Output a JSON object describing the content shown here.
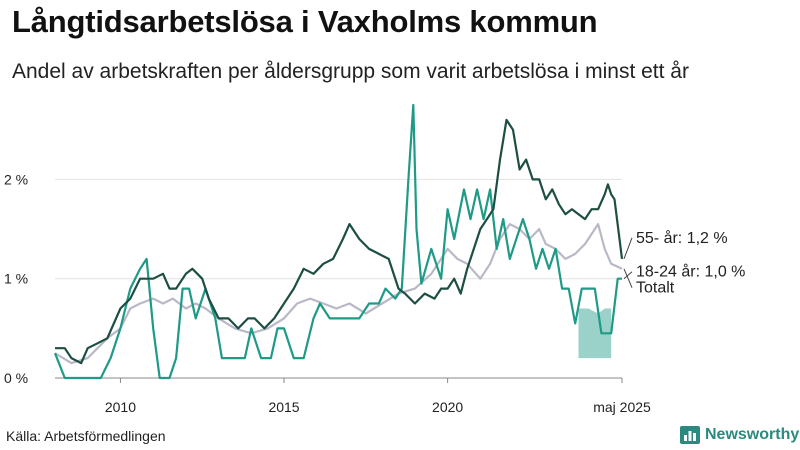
{
  "title": "Långtidsarbetslösa i Vaxholms kommun",
  "subtitle": "Andel av arbetskraften per åldersgrupp som varit arbetslösa i minst ett år",
  "source": "Källa: Arbetsförmedlingen",
  "brand": {
    "name": "Newsworthy",
    "icon": "bar-chart-logo-icon",
    "color": "#2a8a7f"
  },
  "chart_data": {
    "type": "line",
    "title": "",
    "xlabel": "",
    "ylabel": "",
    "x_range": [
      2008.0,
      2025.33
    ],
    "ylim": [
      0,
      2.8
    ],
    "x_ticks": [
      {
        "value": 2010,
        "label": "2010"
      },
      {
        "value": 2015,
        "label": "2015"
      },
      {
        "value": 2020,
        "label": "2020"
      },
      {
        "value": 2025.33,
        "label": "maj 2025"
      }
    ],
    "y_ticks": [
      {
        "value": 0,
        "label": "0 %"
      },
      {
        "value": 1,
        "label": "1 %"
      },
      {
        "value": 2,
        "label": "2 %"
      }
    ],
    "grid": "horizontal",
    "series": [
      {
        "name": "Totalt",
        "end_label": "Totalt",
        "color": "#b9b8c6",
        "points": [
          [
            2008.0,
            0.25
          ],
          [
            2008.5,
            0.15
          ],
          [
            2009.0,
            0.2
          ],
          [
            2009.3,
            0.3
          ],
          [
            2009.6,
            0.4
          ],
          [
            2010.0,
            0.5
          ],
          [
            2010.3,
            0.7
          ],
          [
            2010.6,
            0.75
          ],
          [
            2011.0,
            0.8
          ],
          [
            2011.3,
            0.75
          ],
          [
            2011.6,
            0.8
          ],
          [
            2012.0,
            0.7
          ],
          [
            2012.3,
            0.75
          ],
          [
            2012.6,
            0.7
          ],
          [
            2013.0,
            0.6
          ],
          [
            2013.5,
            0.5
          ],
          [
            2014.0,
            0.45
          ],
          [
            2014.5,
            0.5
          ],
          [
            2015.0,
            0.6
          ],
          [
            2015.4,
            0.75
          ],
          [
            2015.8,
            0.8
          ],
          [
            2016.2,
            0.75
          ],
          [
            2016.6,
            0.7
          ],
          [
            2017.0,
            0.75
          ],
          [
            2017.5,
            0.65
          ],
          [
            2018.0,
            0.75
          ],
          [
            2018.5,
            0.85
          ],
          [
            2019.0,
            0.9
          ],
          [
            2019.5,
            1.05
          ],
          [
            2019.8,
            1.2
          ],
          [
            2020.0,
            1.3
          ],
          [
            2020.3,
            1.2
          ],
          [
            2020.6,
            1.15
          ],
          [
            2021.0,
            1.0
          ],
          [
            2021.3,
            1.15
          ],
          [
            2021.6,
            1.4
          ],
          [
            2021.9,
            1.55
          ],
          [
            2022.2,
            1.5
          ],
          [
            2022.5,
            1.4
          ],
          [
            2022.8,
            1.5
          ],
          [
            2023.0,
            1.35
          ],
          [
            2023.3,
            1.3
          ],
          [
            2023.6,
            1.2
          ],
          [
            2023.9,
            1.25
          ],
          [
            2024.2,
            1.35
          ],
          [
            2024.4,
            1.45
          ],
          [
            2024.6,
            1.55
          ],
          [
            2024.8,
            1.3
          ],
          [
            2025.0,
            1.15
          ],
          [
            2025.33,
            1.1
          ]
        ]
      },
      {
        "name": "18-24 år",
        "end_label": "18-24 år: 1,0 %",
        "color": "#1f9a86",
        "points": [
          [
            2008.0,
            0.25
          ],
          [
            2008.3,
            0.0
          ],
          [
            2008.7,
            0.0
          ],
          [
            2009.0,
            0.0
          ],
          [
            2009.4,
            0.0
          ],
          [
            2009.7,
            0.2
          ],
          [
            2010.0,
            0.5
          ],
          [
            2010.3,
            0.9
          ],
          [
            2010.6,
            1.1
          ],
          [
            2010.8,
            1.2
          ],
          [
            2011.0,
            0.5
          ],
          [
            2011.2,
            0.0
          ],
          [
            2011.5,
            0.0
          ],
          [
            2011.7,
            0.2
          ],
          [
            2011.9,
            0.9
          ],
          [
            2012.1,
            0.9
          ],
          [
            2012.3,
            0.6
          ],
          [
            2012.6,
            0.9
          ],
          [
            2012.9,
            0.6
          ],
          [
            2013.1,
            0.2
          ],
          [
            2013.5,
            0.2
          ],
          [
            2013.8,
            0.2
          ],
          [
            2014.0,
            0.5
          ],
          [
            2014.3,
            0.2
          ],
          [
            2014.6,
            0.2
          ],
          [
            2014.8,
            0.5
          ],
          [
            2015.0,
            0.5
          ],
          [
            2015.3,
            0.2
          ],
          [
            2015.6,
            0.2
          ],
          [
            2015.9,
            0.6
          ],
          [
            2016.1,
            0.75
          ],
          [
            2016.4,
            0.6
          ],
          [
            2016.7,
            0.6
          ],
          [
            2017.0,
            0.6
          ],
          [
            2017.3,
            0.6
          ],
          [
            2017.6,
            0.75
          ],
          [
            2017.9,
            0.75
          ],
          [
            2018.1,
            0.9
          ],
          [
            2018.4,
            0.8
          ],
          [
            2018.6,
            0.9
          ],
          [
            2018.8,
            2.0
          ],
          [
            2018.95,
            2.75
          ],
          [
            2019.05,
            1.5
          ],
          [
            2019.2,
            0.95
          ],
          [
            2019.5,
            1.3
          ],
          [
            2019.8,
            1.0
          ],
          [
            2020.0,
            1.7
          ],
          [
            2020.2,
            1.4
          ],
          [
            2020.5,
            1.9
          ],
          [
            2020.7,
            1.6
          ],
          [
            2020.9,
            1.9
          ],
          [
            2021.1,
            1.6
          ],
          [
            2021.3,
            1.9
          ],
          [
            2021.5,
            1.3
          ],
          [
            2021.7,
            1.6
          ],
          [
            2021.9,
            1.2
          ],
          [
            2022.1,
            1.4
          ],
          [
            2022.3,
            1.6
          ],
          [
            2022.5,
            1.4
          ],
          [
            2022.7,
            1.1
          ],
          [
            2022.9,
            1.3
          ],
          [
            2023.1,
            1.1
          ],
          [
            2023.3,
            1.3
          ],
          [
            2023.5,
            0.9
          ],
          [
            2023.7,
            0.9
          ],
          [
            2023.9,
            0.55
          ],
          [
            2024.1,
            0.9
          ],
          [
            2024.3,
            0.9
          ],
          [
            2024.5,
            0.9
          ],
          [
            2024.7,
            0.45
          ],
          [
            2025.0,
            0.45
          ],
          [
            2025.2,
            1.0
          ],
          [
            2025.33,
            1.0
          ]
        ]
      },
      {
        "name": "55- år",
        "end_label": "55- år: 1,2 %",
        "color": "#1d4e43",
        "points": [
          [
            2008.0,
            0.3
          ],
          [
            2008.3,
            0.3
          ],
          [
            2008.5,
            0.2
          ],
          [
            2008.8,
            0.15
          ],
          [
            2009.0,
            0.3
          ],
          [
            2009.3,
            0.35
          ],
          [
            2009.6,
            0.4
          ],
          [
            2010.0,
            0.7
          ],
          [
            2010.3,
            0.8
          ],
          [
            2010.6,
            1.0
          ],
          [
            2010.8,
            1.0
          ],
          [
            2011.0,
            1.0
          ],
          [
            2011.3,
            1.05
          ],
          [
            2011.5,
            0.9
          ],
          [
            2011.7,
            0.9
          ],
          [
            2012.0,
            1.05
          ],
          [
            2012.2,
            1.1
          ],
          [
            2012.5,
            1.0
          ],
          [
            2012.7,
            0.8
          ],
          [
            2013.0,
            0.6
          ],
          [
            2013.3,
            0.6
          ],
          [
            2013.6,
            0.5
          ],
          [
            2013.9,
            0.6
          ],
          [
            2014.1,
            0.6
          ],
          [
            2014.4,
            0.5
          ],
          [
            2014.7,
            0.6
          ],
          [
            2015.0,
            0.75
          ],
          [
            2015.3,
            0.9
          ],
          [
            2015.6,
            1.1
          ],
          [
            2015.9,
            1.05
          ],
          [
            2016.2,
            1.15
          ],
          [
            2016.5,
            1.2
          ],
          [
            2016.8,
            1.4
          ],
          [
            2017.0,
            1.55
          ],
          [
            2017.3,
            1.4
          ],
          [
            2017.6,
            1.3
          ],
          [
            2017.9,
            1.25
          ],
          [
            2018.2,
            1.2
          ],
          [
            2018.5,
            0.9
          ],
          [
            2018.7,
            0.85
          ],
          [
            2019.0,
            0.75
          ],
          [
            2019.3,
            0.85
          ],
          [
            2019.6,
            0.8
          ],
          [
            2019.8,
            0.9
          ],
          [
            2020.0,
            0.9
          ],
          [
            2020.2,
            1.0
          ],
          [
            2020.4,
            0.85
          ],
          [
            2020.6,
            1.1
          ],
          [
            2020.8,
            1.3
          ],
          [
            2021.0,
            1.5
          ],
          [
            2021.2,
            1.6
          ],
          [
            2021.4,
            1.7
          ],
          [
            2021.6,
            2.2
          ],
          [
            2021.8,
            2.6
          ],
          [
            2022.0,
            2.5
          ],
          [
            2022.2,
            2.1
          ],
          [
            2022.4,
            2.2
          ],
          [
            2022.6,
            2.0
          ],
          [
            2022.8,
            2.0
          ],
          [
            2023.0,
            1.8
          ],
          [
            2023.2,
            1.9
          ],
          [
            2023.4,
            1.75
          ],
          [
            2023.6,
            1.65
          ],
          [
            2023.8,
            1.7
          ],
          [
            2024.0,
            1.65
          ],
          [
            2024.2,
            1.6
          ],
          [
            2024.4,
            1.7
          ],
          [
            2024.6,
            1.7
          ],
          [
            2024.8,
            1.85
          ],
          [
            2024.9,
            1.95
          ],
          [
            2025.0,
            1.85
          ],
          [
            2025.1,
            1.8
          ],
          [
            2025.33,
            1.2
          ]
        ]
      }
    ],
    "range_band": {
      "color": "#1f9a86",
      "opacity": 0.45,
      "points": [
        [
          2024.0,
          0.2,
          0.7
        ],
        [
          2024.3,
          0.2,
          0.7
        ],
        [
          2024.6,
          0.2,
          0.65
        ],
        [
          2024.8,
          0.2,
          0.7
        ],
        [
          2025.0,
          0.2,
          0.7
        ]
      ]
    }
  }
}
